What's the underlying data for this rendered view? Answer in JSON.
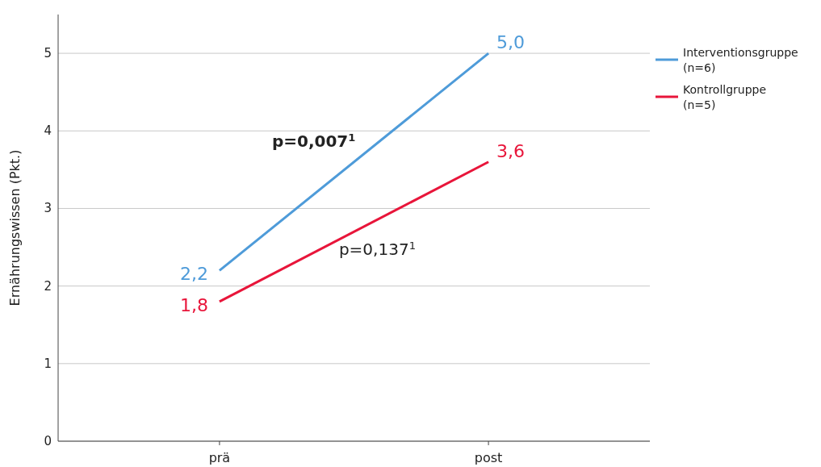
{
  "chart_data": {
    "type": "line",
    "ylabel": "Ernährungswissen (Pkt.)",
    "categories": [
      "prä",
      "post"
    ],
    "series": [
      {
        "name": "Interventionsgruppe\n(n=6)",
        "color": "#4e9bd9",
        "values": [
          2.2,
          5.0
        ],
        "value_labels": [
          "2,2",
          "5,0"
        ]
      },
      {
        "name": "Kontrollgruppe\n(n=5)",
        "color": "#e8153a",
        "values": [
          1.8,
          3.6
        ],
        "value_labels": [
          "1,8",
          "3,6"
        ]
      }
    ],
    "ylim": [
      0,
      5.5
    ],
    "yticks": [
      0,
      1,
      2,
      3,
      4,
      5
    ],
    "grid": "y",
    "legend": "top right",
    "marker": "none",
    "line_style": "solid",
    "annotations": [
      "p=0,007$^{1}$",
      "p=0,137$^{1}$"
    ]
  }
}
